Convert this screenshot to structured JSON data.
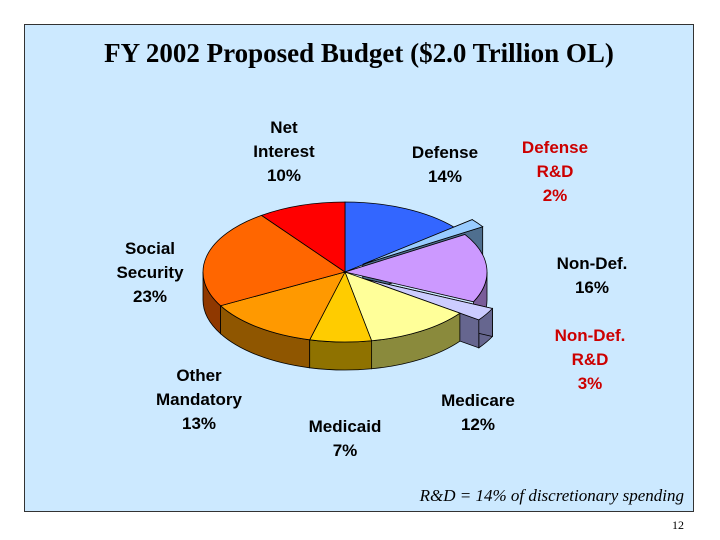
{
  "slide": {
    "title": "FY 2002 Proposed Budget ($2.0 Trillion OL)",
    "footnote": "R&D = 14% of discretionary spending",
    "page_number": "12"
  },
  "chart_data": {
    "type": "pie",
    "title": "FY 2002 Proposed Budget ($2.0 Trillion OL)",
    "unit": "%",
    "slices": [
      {
        "key": "defense",
        "lines": [
          "Defense",
          "14%"
        ],
        "value": 14,
        "color": "#3366ff",
        "side": "#1f3fa8",
        "exploded": false,
        "label_color": "#000000"
      },
      {
        "key": "defense-rd",
        "lines": [
          "Defense",
          "R&D",
          "2%"
        ],
        "value": 2,
        "color": "#99ccff",
        "side": "#4f6f8f",
        "exploded": true,
        "label_color": "#cc0000"
      },
      {
        "key": "non-def",
        "lines": [
          "Non-Def.",
          "16%"
        ],
        "value": 16,
        "color": "#cc99ff",
        "side": "#7a5c99",
        "exploded": false,
        "label_color": "#000000"
      },
      {
        "key": "non-def-rd",
        "lines": [
          "Non-Def.",
          "R&D",
          "3%"
        ],
        "value": 3,
        "color": "#ccccff",
        "side": "#66668f",
        "exploded": true,
        "label_color": "#cc0000"
      },
      {
        "key": "medicare",
        "lines": [
          "Medicare",
          "12%"
        ],
        "value": 12,
        "color": "#ffff99",
        "side": "#8a8a3c",
        "exploded": false,
        "label_color": "#000000"
      },
      {
        "key": "medicaid",
        "lines": [
          "Medicaid",
          "7%"
        ],
        "value": 7,
        "color": "#ffcc00",
        "side": "#8f7200",
        "exploded": false,
        "label_color": "#000000"
      },
      {
        "key": "other-mandatory",
        "lines": [
          "Other",
          "Mandatory",
          "13%"
        ],
        "value": 13,
        "color": "#ff9900",
        "side": "#8f5600",
        "exploded": false,
        "label_color": "#000000"
      },
      {
        "key": "social-security",
        "lines": [
          "Social",
          "Security",
          "23%"
        ],
        "value": 23,
        "color": "#ff6600",
        "side": "#8f3800",
        "exploded": false,
        "label_color": "#000000"
      },
      {
        "key": "net-interest",
        "lines": [
          "Net",
          "Interest",
          "10%"
        ],
        "value": 10,
        "color": "#ff0000",
        "side": "#8f0000",
        "exploded": false,
        "label_color": "#000000"
      }
    ]
  }
}
